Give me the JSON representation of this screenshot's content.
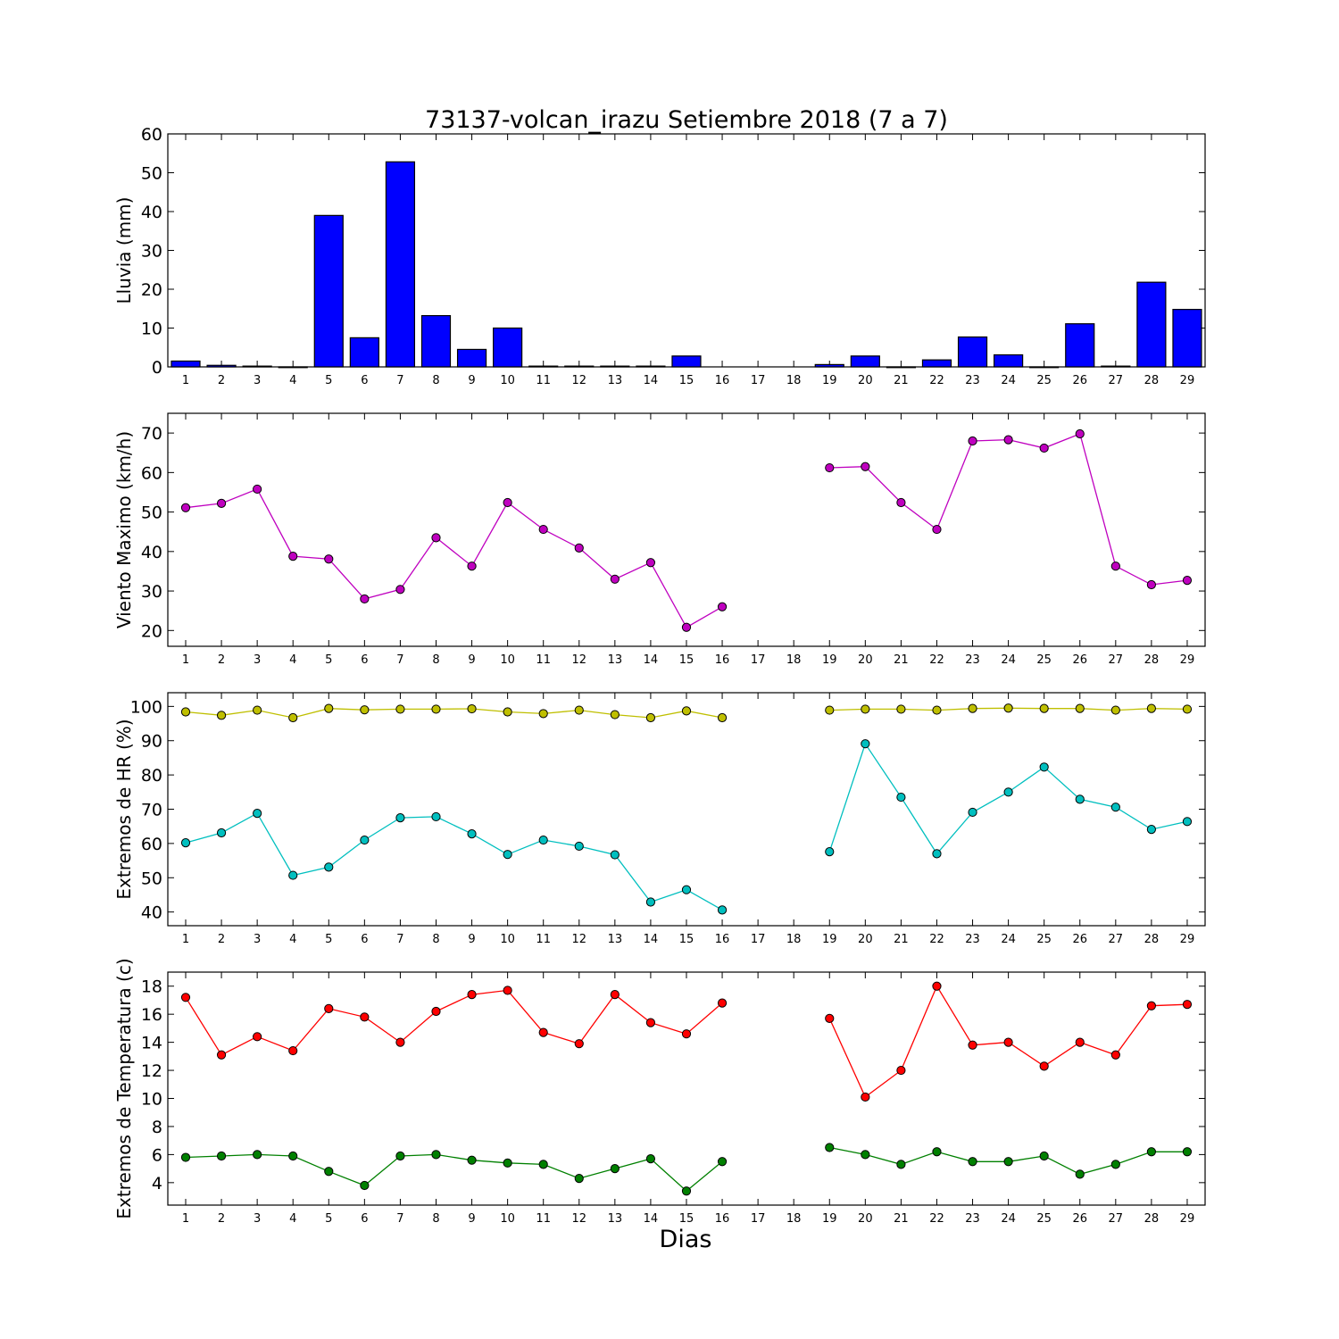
{
  "title": "73137-volcan_irazu Setiembre 2018  (7 a 7)",
  "xlabel": "Dias",
  "chart_data": [
    {
      "type": "bar",
      "ylabel": "Lluvia (mm)",
      "ylim": [
        0,
        60
      ],
      "yticks": [
        0,
        10,
        20,
        30,
        40,
        50,
        60
      ],
      "x": [
        1,
        2,
        3,
        4,
        5,
        6,
        7,
        8,
        9,
        10,
        11,
        12,
        13,
        14,
        15,
        16,
        17,
        18,
        19,
        20,
        21,
        22,
        23,
        24,
        25,
        26,
        27,
        28,
        29
      ],
      "series": [
        {
          "color": "#0000ff",
          "values": [
            1.5,
            0.4,
            0.2,
            0,
            39,
            7.5,
            52.8,
            13.2,
            4.5,
            10,
            0.2,
            0.2,
            0.2,
            0.2,
            2.8,
            null,
            null,
            null,
            0.6,
            2.8,
            0,
            1.8,
            7.7,
            3.1,
            0,
            11.1,
            0.2,
            21.8,
            14.8
          ]
        }
      ]
    },
    {
      "type": "line",
      "ylabel": "Viento Maximo (km/h)",
      "ylim": [
        16,
        75
      ],
      "yticks": [
        20,
        30,
        40,
        50,
        60,
        70
      ],
      "x": [
        1,
        2,
        3,
        4,
        5,
        6,
        7,
        8,
        9,
        10,
        11,
        12,
        13,
        14,
        15,
        16,
        17,
        18,
        19,
        20,
        21,
        22,
        23,
        24,
        25,
        26,
        27,
        28,
        29
      ],
      "series": [
        {
          "color": "#bf00bf",
          "values": [
            51.1,
            52.2,
            55.8,
            38.8,
            38.1,
            28,
            30.4,
            43.5,
            36.3,
            52.4,
            45.6,
            40.9,
            33,
            37.2,
            20.8,
            26,
            null,
            null,
            61.2,
            61.5,
            52.4,
            45.6,
            68,
            68.3,
            66.2,
            69.8,
            36.3,
            31.6,
            32.7
          ]
        }
      ]
    },
    {
      "type": "line",
      "ylabel": "Extremos de HR (%)",
      "ylim": [
        36,
        104
      ],
      "yticks": [
        40,
        50,
        60,
        70,
        80,
        90,
        100
      ],
      "x": [
        1,
        2,
        3,
        4,
        5,
        6,
        7,
        8,
        9,
        10,
        11,
        12,
        13,
        14,
        15,
        16,
        17,
        18,
        19,
        20,
        21,
        22,
        23,
        24,
        25,
        26,
        27,
        28,
        29
      ],
      "series": [
        {
          "color": "#bfbf00",
          "values": [
            98.4,
            97.4,
            98.9,
            96.7,
            99.4,
            99,
            99.2,
            99.2,
            99.3,
            98.4,
            97.9,
            98.9,
            97.6,
            96.7,
            98.7,
            96.7,
            null,
            null,
            98.9,
            99.2,
            99.2,
            98.9,
            99.4,
            99.5,
            99.4,
            99.4,
            98.9,
            99.4,
            99.2
          ]
        },
        {
          "color": "#00bfbf",
          "values": [
            60.2,
            63.1,
            68.8,
            50.7,
            53.1,
            61,
            67.5,
            67.8,
            62.8,
            56.8,
            61,
            59.2,
            56.7,
            42.9,
            46.5,
            40.6,
            null,
            null,
            57.6,
            89.1,
            73.5,
            57,
            69.1,
            75,
            82.3,
            72.9,
            70.6,
            64.1,
            66.4
          ]
        }
      ]
    },
    {
      "type": "line",
      "ylabel": "Extremos de Temperatura (c)",
      "ylim": [
        2.4,
        19
      ],
      "yticks": [
        4,
        6,
        8,
        10,
        12,
        14,
        16,
        18
      ],
      "x": [
        1,
        2,
        3,
        4,
        5,
        6,
        7,
        8,
        9,
        10,
        11,
        12,
        13,
        14,
        15,
        16,
        17,
        18,
        19,
        20,
        21,
        22,
        23,
        24,
        25,
        26,
        27,
        28,
        29
      ],
      "series": [
        {
          "color": "#ff0000",
          "values": [
            17.2,
            13.1,
            14.4,
            13.4,
            16.4,
            15.8,
            14,
            16.2,
            17.4,
            17.7,
            14.7,
            13.9,
            17.4,
            15.4,
            14.6,
            16.8,
            null,
            null,
            15.7,
            10.1,
            12,
            18,
            13.8,
            14,
            12.3,
            14,
            13.1,
            16.6,
            16.7
          ]
        },
        {
          "color": "#008000",
          "values": [
            5.8,
            5.9,
            6,
            5.9,
            4.8,
            3.8,
            5.9,
            6,
            5.6,
            5.4,
            5.3,
            4.3,
            5,
            5.7,
            3.4,
            5.5,
            null,
            null,
            6.5,
            6,
            5.3,
            6.2,
            5.5,
            5.5,
            5.9,
            4.6,
            5.3,
            6.2,
            6.2
          ]
        }
      ]
    }
  ]
}
